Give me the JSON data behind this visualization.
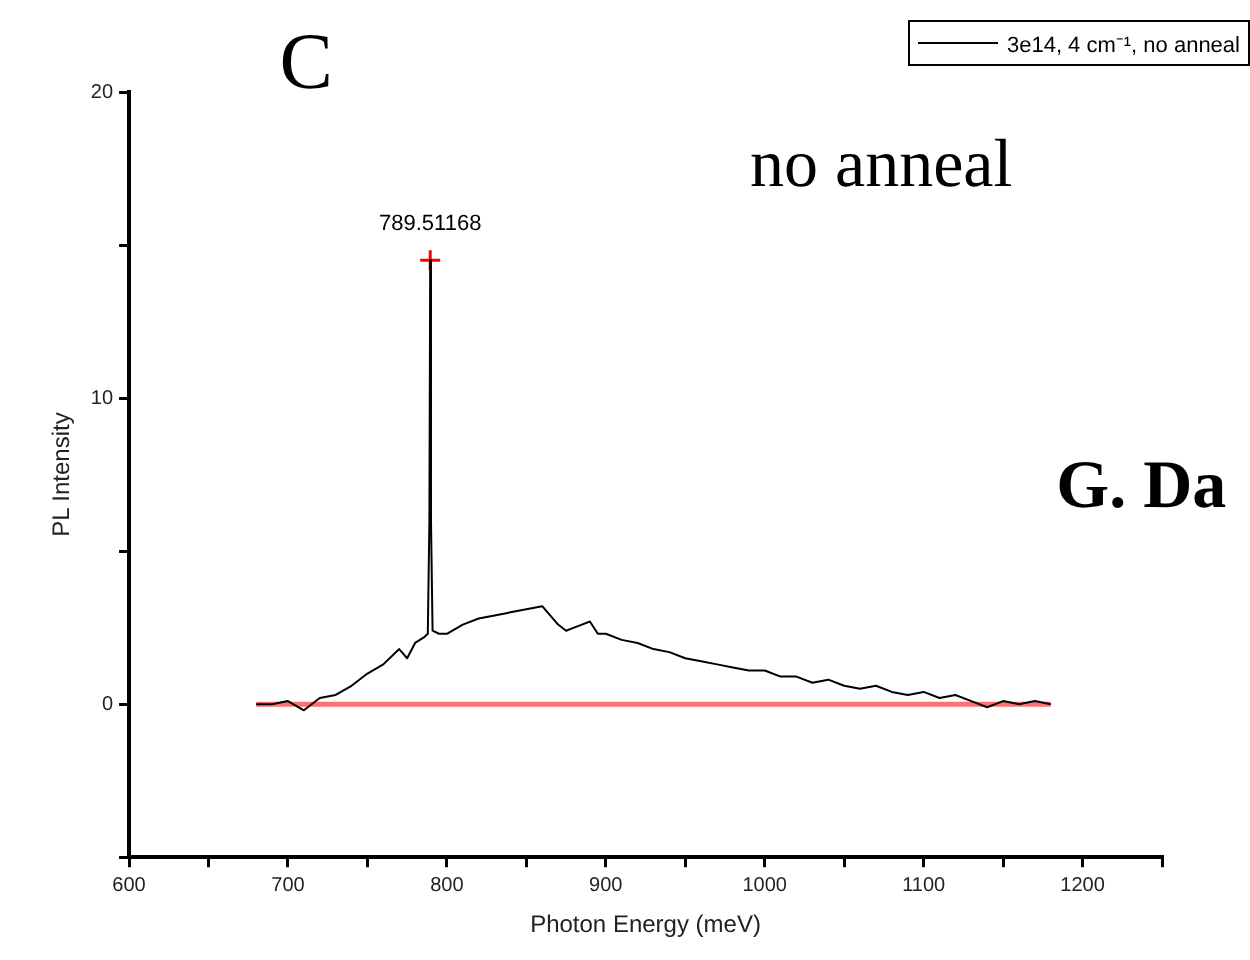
{
  "chart_data": {
    "type": "line",
    "xlabel": "Photon Energy (meV)",
    "ylabel": "PL Intensity",
    "xlim": [
      600,
      1250
    ],
    "xticks": [
      600,
      {
        "value": 650,
        "label": null
      },
      700,
      {
        "value": 750,
        "label": null
      },
      800,
      {
        "value": 850,
        "label": null
      },
      900,
      {
        "value": 950,
        "label": null
      },
      1000,
      {
        "value": 1050,
        "label": null
      },
      1100,
      {
        "value": 1150,
        "label": null
      },
      1200,
      {
        "value": 1250,
        "label": null
      }
    ],
    "ylim": [
      -5,
      20
    ],
    "yticks": [
      {
        "value": -5,
        "label": null
      },
      0,
      {
        "value": 5,
        "label": null
      },
      10,
      {
        "value": 15,
        "label": null
      },
      20
    ],
    "grid": false,
    "legend": "top right",
    "series": [
      {
        "name": "3e14, 4 cm⁻¹, no anneal",
        "color": "#000000",
        "x": [
          680,
          690,
          700,
          710,
          720,
          730,
          740,
          750,
          760,
          770,
          775,
          780,
          786,
          788,
          789,
          789.51168,
          790,
          791,
          795,
          800,
          810,
          820,
          830,
          840,
          850,
          860,
          865,
          870,
          875,
          880,
          885,
          890,
          895,
          900,
          910,
          920,
          930,
          940,
          950,
          960,
          970,
          980,
          990,
          1000,
          1010,
          1020,
          1030,
          1040,
          1050,
          1060,
          1070,
          1080,
          1090,
          1100,
          1110,
          1120,
          1130,
          1140,
          1150,
          1160,
          1170,
          1180
        ],
        "values": [
          0,
          0,
          0.1,
          -0.2,
          0.2,
          0.3,
          0.6,
          1.0,
          1.3,
          1.8,
          1.5,
          2.0,
          2.2,
          2.3,
          6,
          14.5,
          6,
          2.4,
          2.3,
          2.3,
          2.6,
          2.8,
          2.9,
          3.0,
          3.1,
          3.2,
          2.9,
          2.6,
          2.4,
          2.5,
          2.6,
          2.7,
          2.3,
          2.3,
          2.1,
          2.0,
          1.8,
          1.7,
          1.5,
          1.4,
          1.3,
          1.2,
          1.1,
          1.1,
          0.9,
          0.9,
          0.7,
          0.8,
          0.6,
          0.5,
          0.6,
          0.4,
          0.3,
          0.4,
          0.2,
          0.3,
          0.1,
          -0.1,
          0.1,
          0,
          0.1,
          0
        ]
      },
      {
        "type": "line",
        "color": "#ff7070",
        "x": [
          680,
          1180
        ],
        "values": [
          0,
          0
        ]
      },
      {
        "type": "scatter",
        "color": "#ff0000",
        "marker": "cross",
        "x": [
          789.51168
        ],
        "values": [
          14.5
        ]
      }
    ],
    "annotations": [
      "C",
      "no anneal",
      "G. Da",
      {
        "text": "789.51168",
        "x": 789.51168,
        "y": 14.5
      }
    ]
  }
}
